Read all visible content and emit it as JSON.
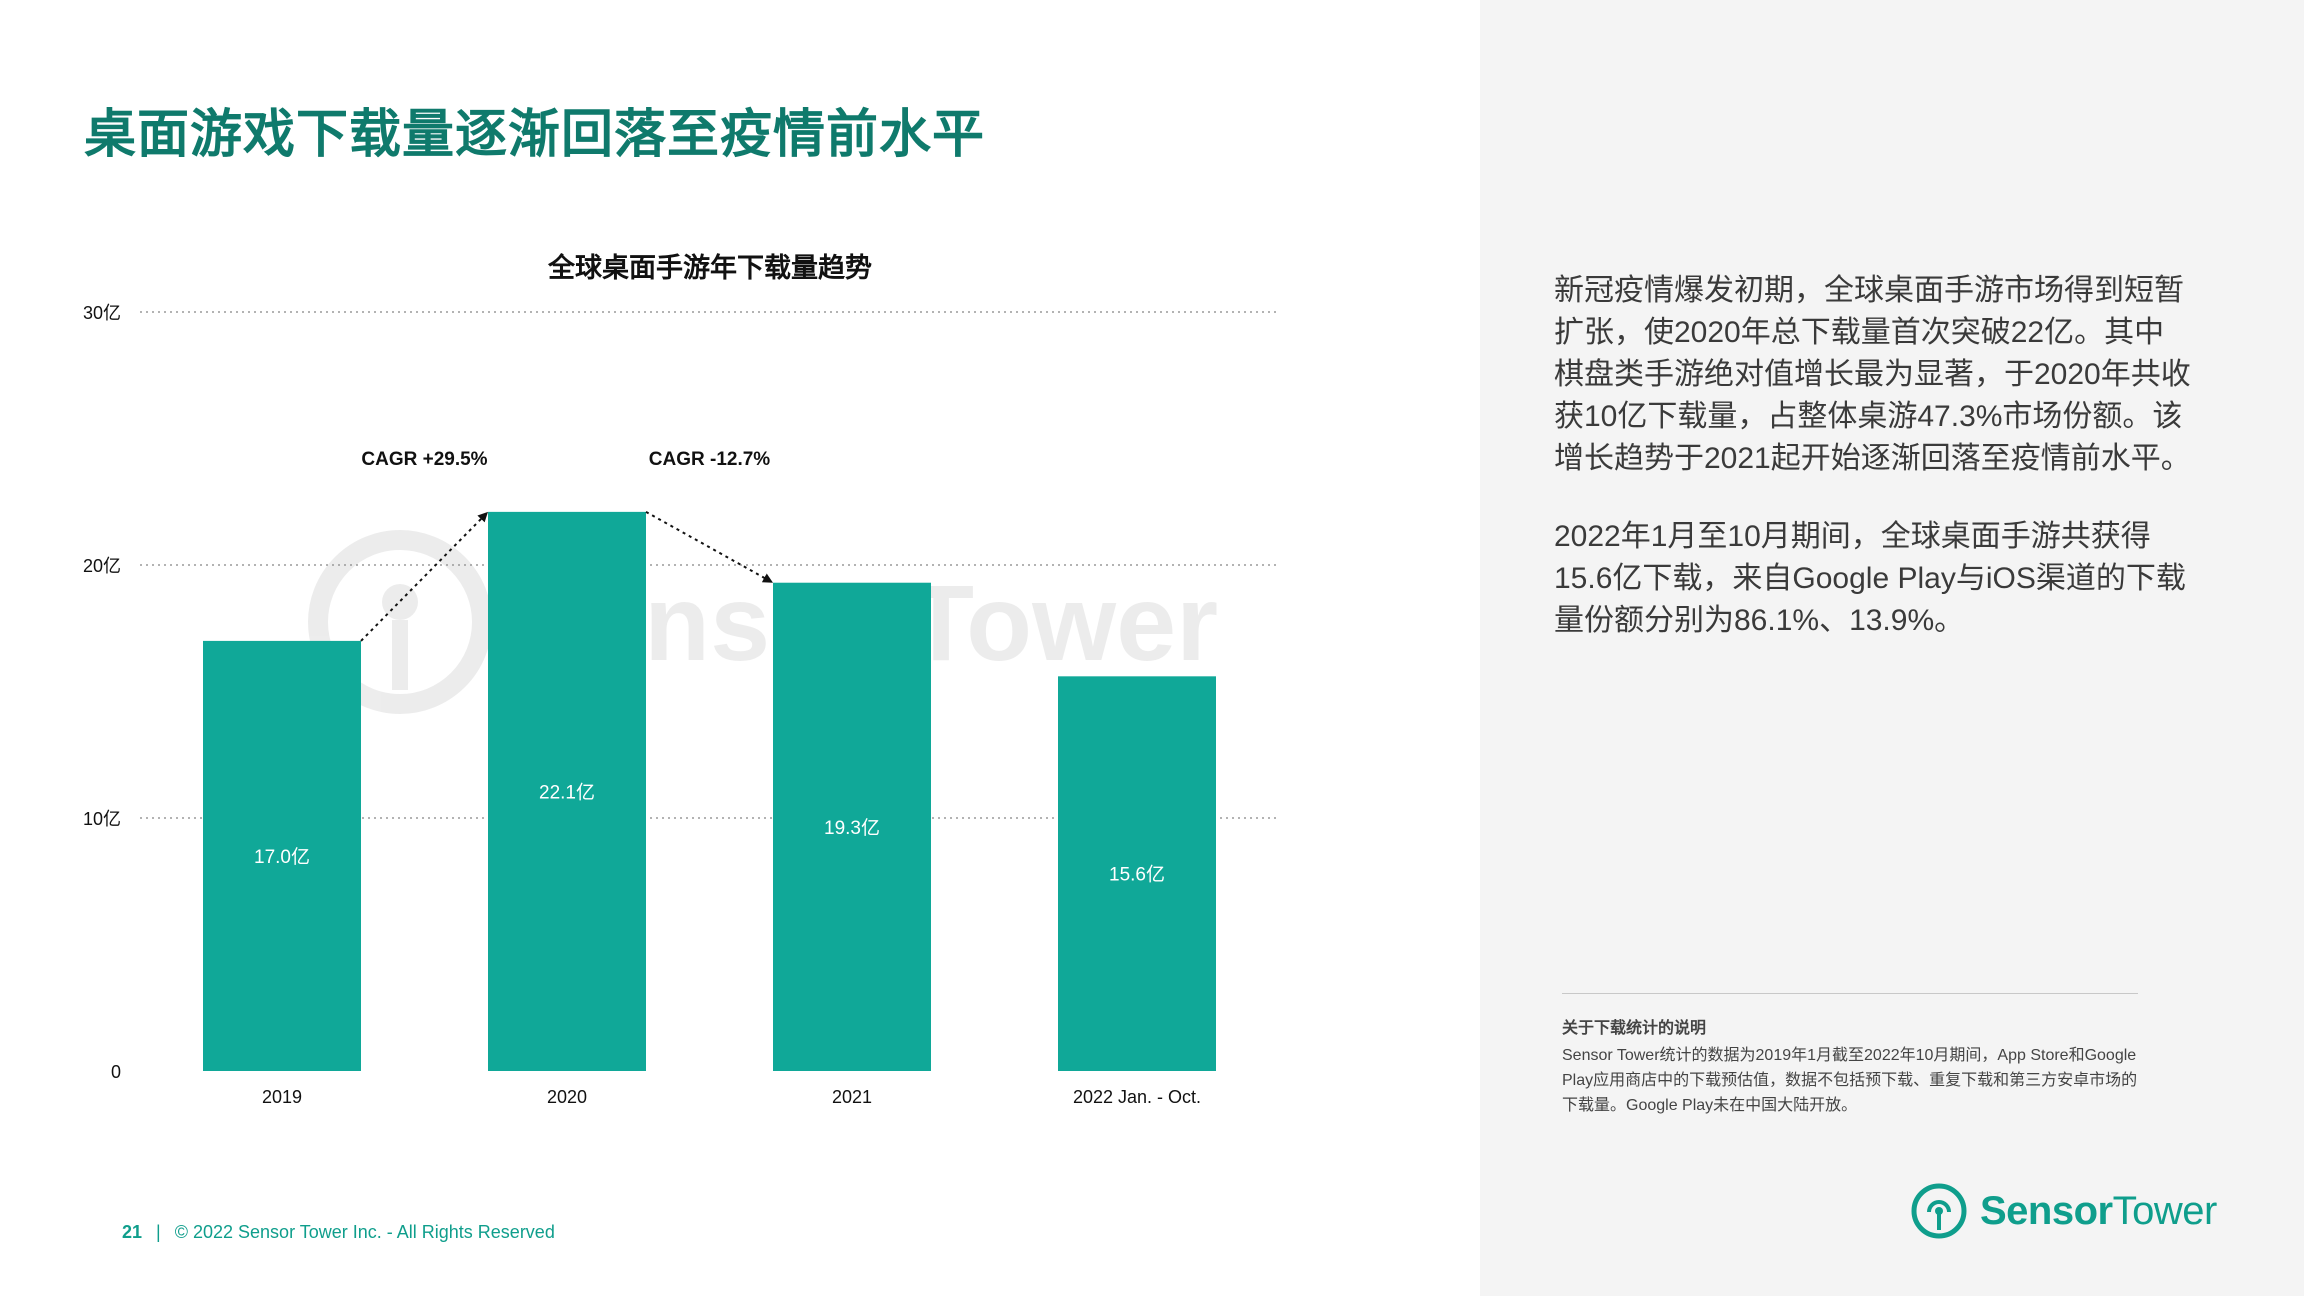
{
  "page": {
    "title": "桌面游戏下载量逐渐回落至疫情前水平",
    "page_number": "21",
    "footer_separator": "|",
    "copyright": "© 2022 Sensor Tower Inc. - All Rights Reserved"
  },
  "chart_data": {
    "type": "bar",
    "title": "全球桌面手游年下载量趋势",
    "categories": [
      "2019",
      "2020",
      "2021",
      "2022 Jan. - Oct."
    ],
    "values": [
      17.0,
      22.1,
      19.3,
      15.6
    ],
    "value_labels": [
      "17.0亿",
      "22.1亿",
      "19.3亿",
      "15.6亿"
    ],
    "ylim": [
      0,
      30
    ],
    "yticks": [
      {
        "value": 0,
        "label": "0"
      },
      {
        "value": 10,
        "label": "10亿"
      },
      {
        "value": 20,
        "label": "20亿"
      },
      {
        "value": 30,
        "label": "30亿"
      }
    ],
    "grid": true,
    "bar_color": "#10a898",
    "annotations": [
      {
        "text": "CAGR +29.5%",
        "from_index": 0,
        "to_index": 1
      },
      {
        "text": "CAGR -12.7%",
        "from_index": 1,
        "to_index": 2
      }
    ],
    "watermark": "Sensor Tower"
  },
  "sidebar": {
    "paragraphs": [
      "新冠疫情爆发初期，全球桌面手游市场得到短暂扩张，使2020年总下载量首次突破22亿。其中棋盘类手游绝对值增长最为显著，于2020年共收获10亿下载量，占整体桌游47.3%市场份额。该增长趋势于2021起开始逐渐回落至疫情前水平。",
      "2022年1月至10月期间，全球桌面手游共获得15.6亿下载，来自Google Play与iOS渠道的下载量份额分别为86.1%、13.9%。"
    ],
    "note_title": "关于下载统计的说明",
    "note_text": "Sensor Tower统计的数据为2019年1月截至2022年10月期间，App Store和Google Play应用商店中的下载预估值，数据不包括预下载、重复下载和第三方安卓市场的下载量。Google Play未在中国大陆开放。"
  },
  "logo": {
    "word1": "Sensor",
    "word2": "Tower",
    "icon": "sensor-tower-logo-icon"
  },
  "colors": {
    "brand": "#0f9e8c",
    "title": "#0f7a6c",
    "bar": "#10a898",
    "panel": "#f4f4f4"
  }
}
